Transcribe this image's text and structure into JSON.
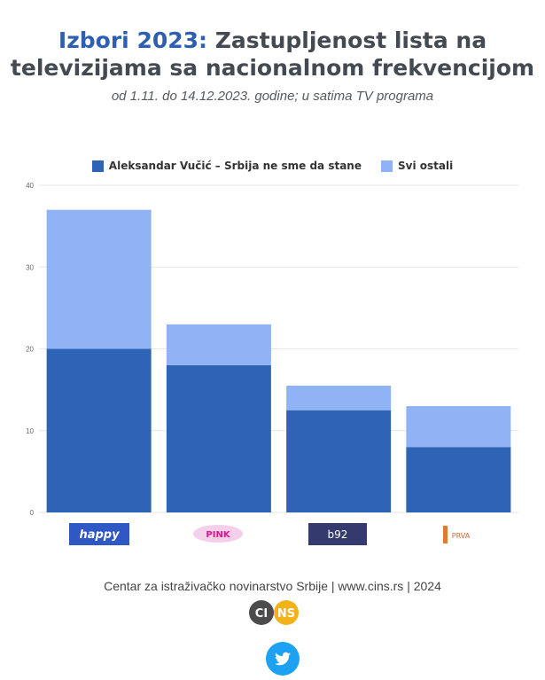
{
  "header": {
    "title_highlight": "Izbori 2023:",
    "title_rest_line1": " Zastupljenost lista na",
    "title_line2": "televizijama sa nacionalnom frekvencijom",
    "subtitle": "od 1.11. do 14.12.2023. godine; u satima TV programa"
  },
  "colors": {
    "series1": "#2f63b6",
    "series2": "#8fb3f5",
    "title_accent": "#2f5fb0",
    "grid": "#e6e6e6"
  },
  "chart_data": {
    "type": "bar",
    "stacked": true,
    "categories": [
      "happy",
      "PINK",
      "b92",
      "PRVA"
    ],
    "series": [
      {
        "name": "Aleksandar Vučić – Srbija ne sme da stane",
        "values": [
          20,
          18,
          12.5,
          8
        ]
      },
      {
        "name": "Svi ostali",
        "values": [
          17,
          5,
          3,
          5
        ]
      }
    ],
    "ylim": [
      0,
      40
    ],
    "yticks": [
      "0",
      "10",
      "20",
      "30",
      "40"
    ],
    "grid": true,
    "legend_position": "top"
  },
  "logos": {
    "happy": "happy",
    "pink": "PINK",
    "b92": "b92",
    "prva": "PRVA"
  },
  "footer": {
    "credit": "Centar za istraživačko novinarstvo Srbije | www.cins.rs | 2024",
    "cins_left": "CI",
    "cins_right": "NS"
  }
}
